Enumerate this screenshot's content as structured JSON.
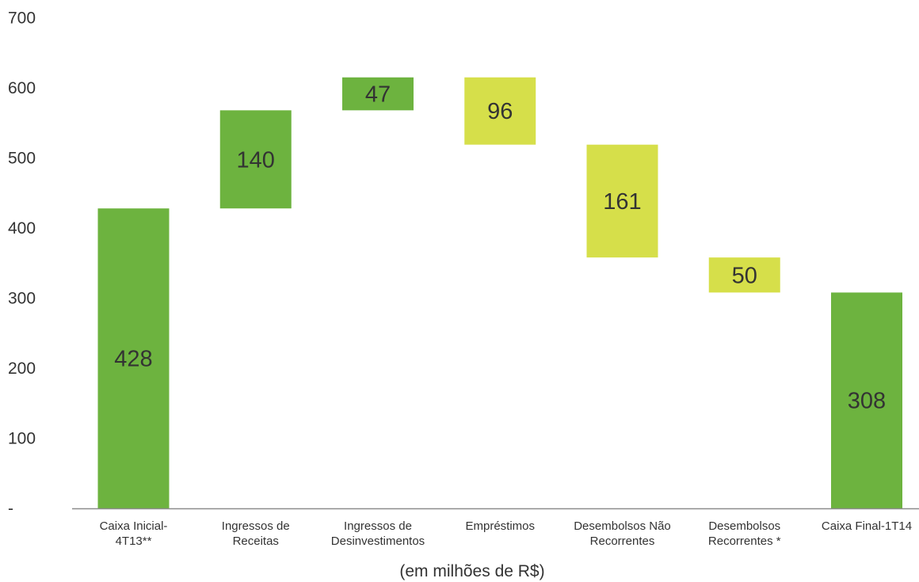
{
  "chart_data": {
    "type": "bar",
    "subtype": "waterfall",
    "categories": [
      [
        "Caixa Inicial-",
        "4T13**"
      ],
      [
        "Ingressos de",
        "Receitas"
      ],
      [
        "Ingressos de",
        "Desinvestimentos"
      ],
      [
        "Empréstimos"
      ],
      [
        "Desembolsos Não",
        "Recorrentes"
      ],
      [
        "Desembolsos",
        "Recorrentes *"
      ],
      [
        "Caixa Final-1T14"
      ]
    ],
    "bars": [
      {
        "base": 0,
        "top": 428,
        "label": "428",
        "kind": "total"
      },
      {
        "base": 428,
        "top": 568,
        "label": "140",
        "kind": "increase"
      },
      {
        "base": 568,
        "top": 615,
        "label": "47",
        "kind": "increase"
      },
      {
        "base": 519,
        "top": 615,
        "label": "96",
        "kind": "decrease"
      },
      {
        "base": 358,
        "top": 519,
        "label": "161",
        "kind": "decrease"
      },
      {
        "base": 308,
        "top": 358,
        "label": "50",
        "kind": "decrease"
      },
      {
        "base": 0,
        "top": 308,
        "label": "308",
        "kind": "total"
      }
    ],
    "y_ticks": [
      "-",
      "100",
      "200",
      "300",
      "400",
      "500",
      "600",
      "700"
    ],
    "ylim": [
      0,
      700
    ],
    "xlabel": "(em milhões de R$)",
    "colors": {
      "total": "#6db33f",
      "increase": "#6db33f",
      "decrease": "#d6df4a",
      "axis": "#8c8c8c"
    }
  }
}
